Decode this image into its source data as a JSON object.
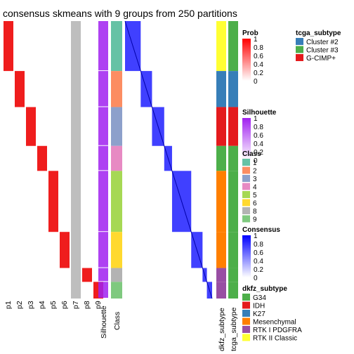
{
  "chart_data": {
    "type": "heatmap",
    "title": "consensus skmeans with 9 groups from 250 partitions",
    "prob_columns": [
      "p1",
      "p2",
      "p3",
      "p4",
      "p5",
      "p6",
      "p7",
      "p8",
      "p9"
    ],
    "annotation_columns": [
      "Silhouette",
      "Class"
    ],
    "right_annotation_columns": [
      "dkfz_subtype",
      "tcga_subtype"
    ],
    "class_groups": [
      {
        "class": "1",
        "start": 0.0,
        "end": 0.18
      },
      {
        "class": "2",
        "start": 0.18,
        "end": 0.31
      },
      {
        "class": "3",
        "start": 0.31,
        "end": 0.45
      },
      {
        "class": "4",
        "start": 0.45,
        "end": 0.54
      },
      {
        "class": "5",
        "start": 0.54,
        "end": 0.76
      },
      {
        "class": "6",
        "start": 0.76,
        "end": 0.89
      },
      {
        "class": "8",
        "start": 0.89,
        "end": 0.94
      },
      {
        "class": "9",
        "start": 0.94,
        "end": 1.0
      }
    ],
    "legends": {
      "prob": {
        "title": "Prob",
        "ticks": [
          "1",
          "0.8",
          "0.6",
          "0.4",
          "0.2",
          "0"
        ],
        "color_low": "#ffffff",
        "color_high": "#ff0000"
      },
      "silhouette": {
        "title": "Silhouette",
        "ticks": [
          "1",
          "0.8",
          "0.6",
          "0.4",
          "0.2",
          "0"
        ],
        "color_low": "#ffffff",
        "color_high": "#a020f0"
      },
      "class": {
        "title": "Class",
        "items": [
          {
            "label": "1",
            "color": "#66c2a5"
          },
          {
            "label": "2",
            "color": "#fc8d62"
          },
          {
            "label": "3",
            "color": "#8da0cb"
          },
          {
            "label": "4",
            "color": "#e78ac3"
          },
          {
            "label": "5",
            "color": "#a6d854"
          },
          {
            "label": "6",
            "color": "#ffd92f"
          },
          {
            "label": "8",
            "color": "#b3b3b3"
          },
          {
            "label": "9",
            "color": "#7fc97f"
          }
        ]
      },
      "consensus": {
        "title": "Consensus",
        "ticks": [
          "1",
          "0.8",
          "0.6",
          "0.4",
          "0.2",
          "0"
        ],
        "color_low": "#ffffff",
        "color_high": "#0000ff"
      },
      "dkfz_subtype": {
        "title": "dkfz_subtype",
        "items": [
          {
            "label": "G34",
            "color": "#4daf4a"
          },
          {
            "label": "IDH",
            "color": "#e41a1c"
          },
          {
            "label": "K27",
            "color": "#377eb8"
          },
          {
            "label": "Mesenchymal",
            "color": "#ff7f00"
          },
          {
            "label": "RTK I PDGFRA",
            "color": "#984ea3"
          },
          {
            "label": "RTK II Classic",
            "color": "#ffff33"
          }
        ]
      },
      "tcga_subtype": {
        "title": "tcga_subtype",
        "items": [
          {
            "label": "Cluster #2",
            "color": "#377eb8"
          },
          {
            "label": "Cluster #3",
            "color": "#4daf4a"
          },
          {
            "label": "G-CIMP+",
            "color": "#e41a1c"
          }
        ]
      }
    }
  }
}
